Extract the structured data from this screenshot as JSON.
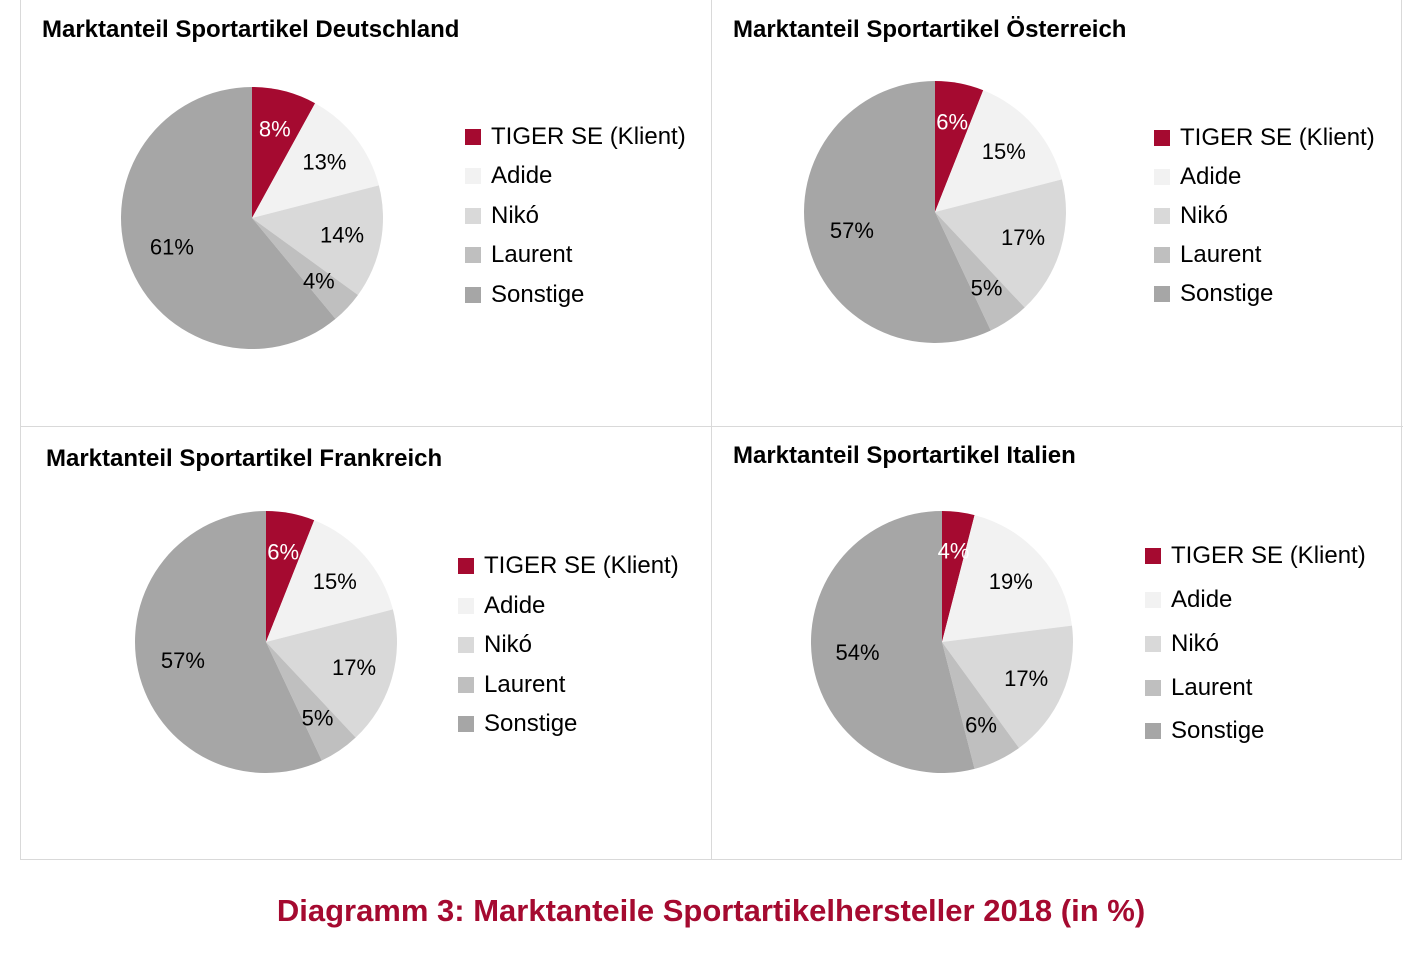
{
  "colors": {
    "slice": [
      "#a50a30",
      "#f2f2f2",
      "#d9d9d9",
      "#bfbfbf",
      "#a6a6a6"
    ],
    "slice_label_text": [
      "#ffffff",
      "#000000",
      "#000000",
      "#000000",
      "#000000"
    ],
    "grid_line": "#d9d9d9",
    "caption": "#a50a30"
  },
  "caption": "Diagramm 3: Marktanteile Sportartikelhersteller 2018 (in %)",
  "chart_data": [
    {
      "type": "pie",
      "title": "Marktanteil Sportartikel Deutschland",
      "categories": [
        "TIGER SE (Klient)",
        "Adide",
        "Nikó",
        "Laurent",
        "Sonstige"
      ],
      "values": [
        8,
        13,
        14,
        4,
        61
      ],
      "data_labels": [
        "8%",
        "13%",
        "14%",
        "4%",
        "61%"
      ],
      "legend_position": "right"
    },
    {
      "type": "pie",
      "title": "Marktanteil Sportartikel Österreich",
      "categories": [
        "TIGER SE (Klient)",
        "Adide",
        "Nikó",
        "Laurent",
        "Sonstige"
      ],
      "values": [
        6,
        15,
        17,
        5,
        57
      ],
      "data_labels": [
        "6%",
        "15%",
        "17%",
        "5%",
        "57%"
      ],
      "legend_position": "right"
    },
    {
      "type": "pie",
      "title": "Marktanteil Sportartikel Frankreich",
      "categories": [
        "TIGER SE (Klient)",
        "Adide",
        "Nikó",
        "Laurent",
        "Sonstige"
      ],
      "values": [
        6,
        15,
        17,
        5,
        57
      ],
      "data_labels": [
        "6%",
        "15%",
        "17%",
        "5%",
        "57%"
      ],
      "legend_position": "right"
    },
    {
      "type": "pie",
      "title": "Marktanteil Sportartikel Italien",
      "categories": [
        "TIGER SE (Klient)",
        "Adide",
        "Nikó",
        "Laurent",
        "Sonstige"
      ],
      "values": [
        4,
        19,
        17,
        6,
        54
      ],
      "data_labels": [
        "4%",
        "19%",
        "17%",
        "6%",
        "54%"
      ],
      "legend_position": "right"
    }
  ]
}
